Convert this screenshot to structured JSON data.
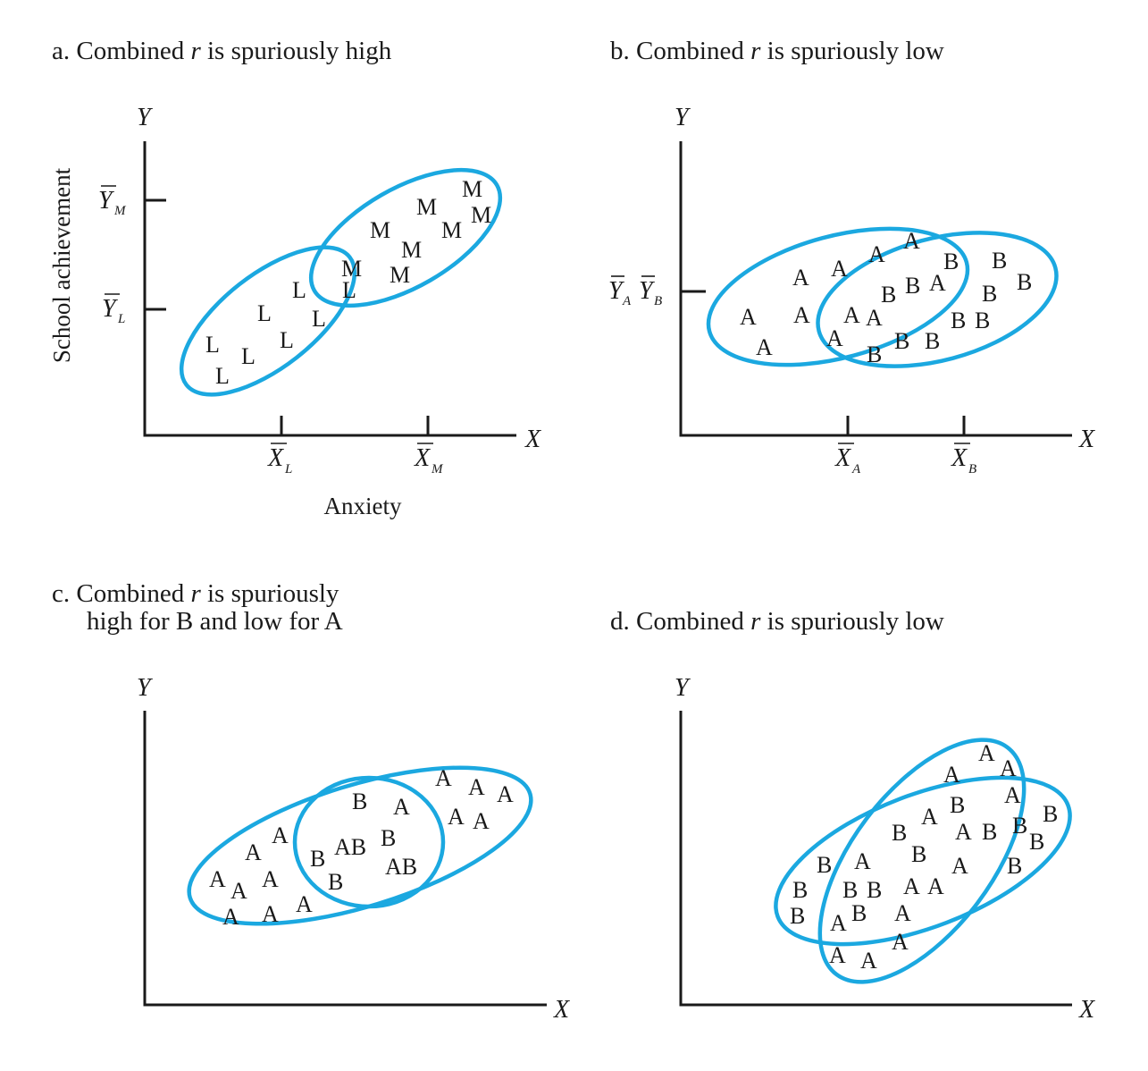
{
  "colors": {
    "ellipse": "#1ba8e0",
    "ink": "#1a1a1a",
    "background": "#ffffff"
  },
  "panels": {
    "a": {
      "title_prefix": "a.  Combined ",
      "title_r": "r",
      "title_suffix": " is spuriously high",
      "y_axis": "Y",
      "x_axis": "X",
      "y_ticks": [
        {
          "base": "Y",
          "sub": "M"
        },
        {
          "base": "Y",
          "sub": "L"
        }
      ],
      "x_ticks": [
        {
          "base": "X",
          "sub": "L"
        },
        {
          "base": "X",
          "sub": "M"
        }
      ],
      "ylabel": "School achievement",
      "xlabel": "Anxiety",
      "points": [
        "M",
        "M",
        "M",
        "M",
        "M",
        "M",
        "M",
        "M",
        "M",
        "L",
        "L",
        "L",
        "L",
        "L",
        "L",
        "L",
        "L",
        "L"
      ]
    },
    "b": {
      "title_prefix": "b.  Combined ",
      "title_r": "r",
      "title_suffix": " is spuriously low",
      "y_axis": "Y",
      "x_axis": "X",
      "y_tick_pair": [
        {
          "base": "Y",
          "sub": "A"
        },
        {
          "base": "Y",
          "sub": "B"
        }
      ],
      "x_ticks": [
        {
          "base": "X",
          "sub": "A"
        },
        {
          "base": "X",
          "sub": "B"
        }
      ],
      "points": [
        "A",
        "A",
        "A",
        "A",
        "A",
        "A",
        "A",
        "A",
        "A",
        "A",
        "A",
        "A",
        "A",
        "B",
        "B",
        "B",
        "B",
        "B",
        "B",
        "B",
        "B",
        "B",
        "B",
        "B",
        "B"
      ]
    },
    "c": {
      "title_line1_prefix": "c.  Combined ",
      "title_line1_r": "r",
      "title_line1_suffix": " is spuriously",
      "title_line2": "high for B and low for A",
      "y_axis": "Y",
      "x_axis": "X",
      "points": [
        "A",
        "A",
        "A",
        "A",
        "A",
        "A",
        "A",
        "A",
        "A",
        "A",
        "A",
        "A",
        "A",
        "A",
        "A",
        "B",
        "A",
        "B",
        "AB",
        "B",
        "AB",
        "B"
      ]
    },
    "d": {
      "title_prefix": "d.  Combined ",
      "title_r": "r",
      "title_suffix": " is spuriously low",
      "y_axis": "Y",
      "x_axis": "X",
      "points": [
        "A",
        "A",
        "A",
        "A",
        "A",
        "A",
        "B",
        "B",
        "A",
        "B",
        "B",
        "B",
        "A",
        "B",
        "B",
        "A",
        "B",
        "B",
        "A",
        "B",
        "A",
        "B",
        "B",
        "A",
        "A",
        "B",
        "A",
        "B",
        "A",
        "A",
        "A",
        "A",
        "B"
      ]
    }
  }
}
